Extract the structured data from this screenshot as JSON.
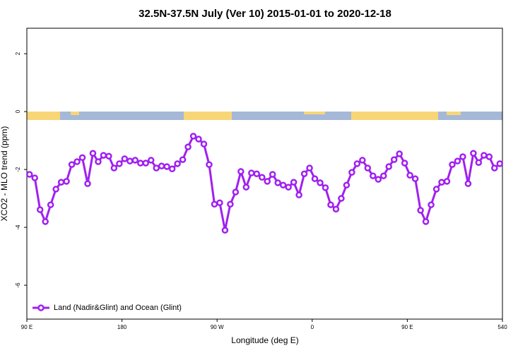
{
  "chart_data": {
    "type": "line",
    "title": "32.5N-37.5N July (Ver 10)   2015-01-01 to 2020-12-18",
    "xlabel": "Longitude (deg E)",
    "ylabel": "XCO2 - MLO trend (ppm)",
    "xlim": [
      90,
      540
    ],
    "ylim": [
      -7.17,
      2.88
    ],
    "xticks": [
      {
        "value": 90,
        "label": "90 E"
      },
      180,
      {
        "value": 270,
        "label": "90 W"
      },
      {
        "value": 360,
        "label": "0"
      },
      {
        "value": 450,
        "label": "90 E"
      },
      540
    ],
    "yticks": [
      -6,
      -4,
      -2,
      0,
      2
    ],
    "legend_position": "bottom-left",
    "x": [
      92.5,
      97.5,
      102.5,
      107.5,
      112.5,
      117.5,
      122.5,
      127.5,
      132.5,
      137.5,
      142.5,
      147.5,
      152.5,
      157.5,
      162.5,
      167.5,
      172.5,
      177.5,
      182.5,
      187.5,
      192.5,
      197.5,
      202.5,
      207.5,
      212.5,
      217.5,
      222.5,
      227.5,
      232.5,
      237.5,
      242.5,
      247.5,
      252.5,
      257.5,
      262.5,
      267.5,
      272.5,
      277.5,
      282.5,
      287.5,
      292.5,
      297.5,
      302.5,
      307.5,
      312.5,
      317.5,
      322.5,
      327.5,
      332.5,
      337.5,
      342.5,
      347.5,
      352.5,
      357.5,
      362.5,
      367.5,
      372.5,
      377.5,
      382.5,
      387.5,
      392.5,
      397.5,
      402.5,
      407.5,
      412.5,
      417.5,
      422.5,
      427.5,
      432.5,
      437.5,
      442.5,
      447.5,
      452.5,
      457.5,
      462.5,
      467.5,
      472.5,
      477.5,
      482.5,
      487.5,
      492.5,
      497.5,
      502.5,
      507.5,
      512.5,
      517.5,
      522.5,
      527.5,
      532.5,
      537.5
    ],
    "series": [
      {
        "name": "Land (Nadir&Glint) and Ocean (Glint)",
        "color": "#a020f0",
        "values": [
          -2.17,
          -2.29,
          -3.39,
          -3.8,
          -3.22,
          -2.68,
          -2.44,
          -2.41,
          -1.83,
          -1.73,
          -1.59,
          -2.49,
          -1.44,
          -1.73,
          -1.51,
          -1.54,
          -1.95,
          -1.8,
          -1.63,
          -1.71,
          -1.68,
          -1.78,
          -1.78,
          -1.68,
          -1.95,
          -1.88,
          -1.9,
          -1.98,
          -1.8,
          -1.66,
          -1.22,
          -0.85,
          -0.95,
          -1.12,
          -1.83,
          -3.2,
          -3.15,
          -4.1,
          -3.2,
          -2.78,
          -2.07,
          -2.61,
          -2.12,
          -2.15,
          -2.27,
          -2.41,
          -2.17,
          -2.46,
          -2.54,
          -2.61,
          -2.44,
          -2.88,
          -2.15,
          -1.95,
          -2.32,
          -2.46,
          -2.63,
          -3.22,
          -3.37,
          -3,
          -2.54,
          -2.1,
          -1.8,
          -1.68,
          -1.95,
          -2.22,
          -2.34,
          -2.22,
          -1.9,
          -1.66,
          -1.46,
          -1.78,
          -2.2,
          -2.32,
          -3.41,
          -3.8,
          -3.22,
          -2.68,
          -2.44,
          -2.41,
          -1.83,
          -1.71,
          -1.56,
          -2.49,
          -1.44,
          -1.76,
          -1.51,
          -1.56,
          -1.95,
          -1.8
        ]
      }
    ]
  }
}
